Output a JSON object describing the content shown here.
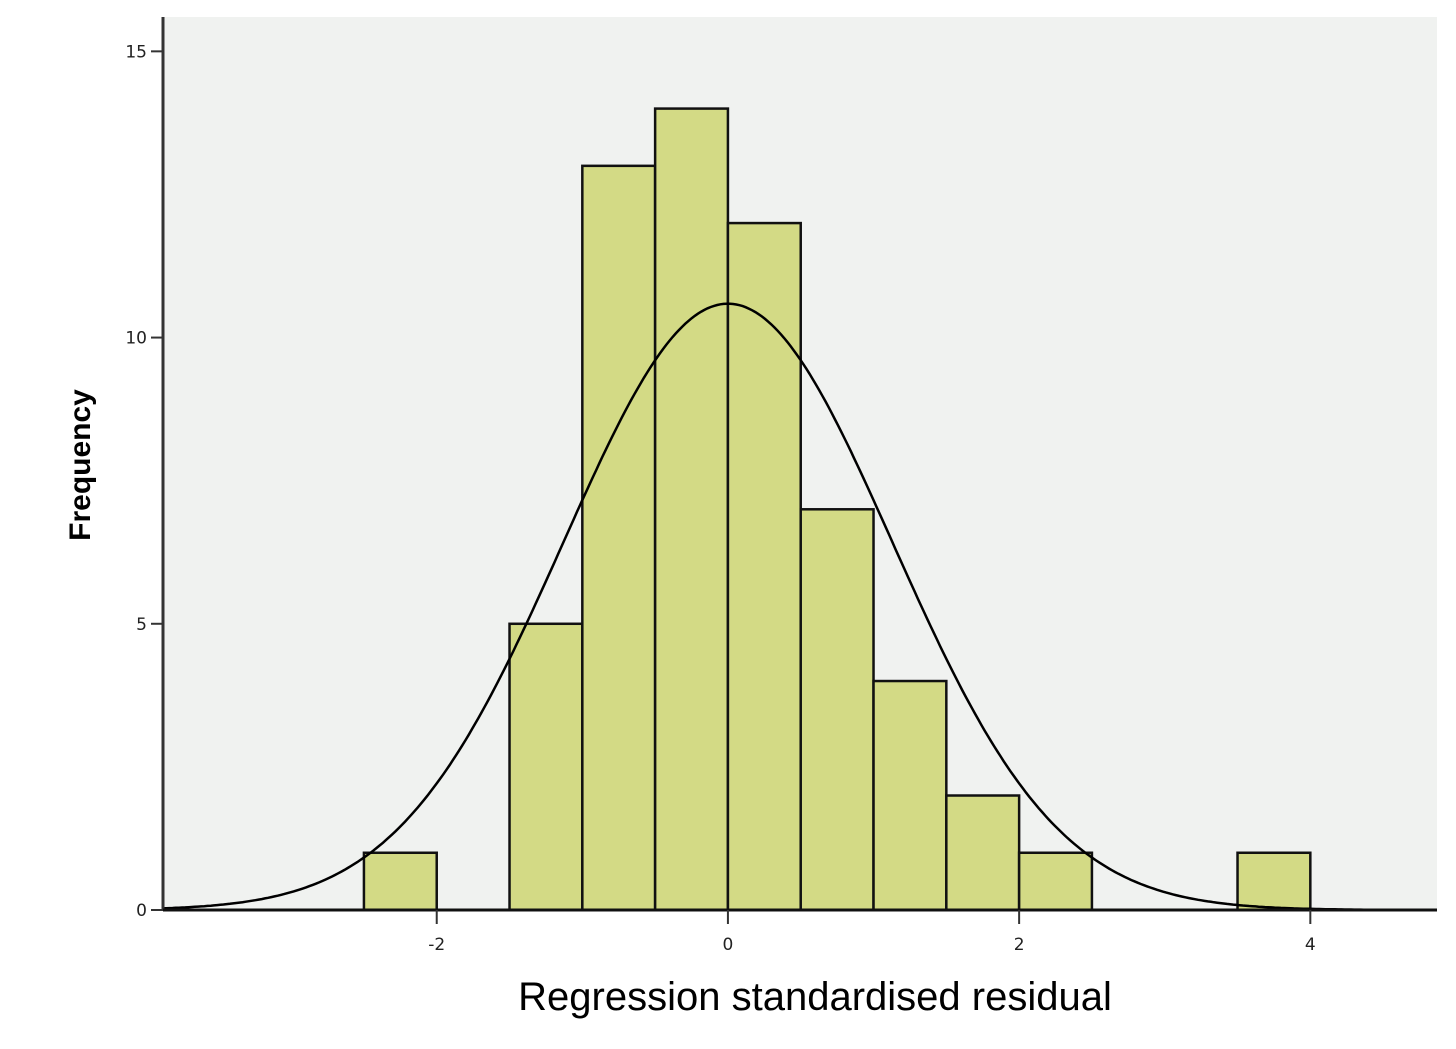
{
  "chart_data": {
    "type": "bar",
    "subtype": "histogram",
    "title": "",
    "xlabel": "Regression standardised residual",
    "ylabel": "Frequency",
    "xlim": [
      -3.88,
      4.87
    ],
    "ylim": [
      0,
      15.6
    ],
    "xticks": [
      -2,
      0,
      2,
      4
    ],
    "xtick_labels": [
      "-2",
      "0",
      "2",
      "4"
    ],
    "yticks": [
      0,
      5,
      10,
      15
    ],
    "ytick_labels": [
      "0",
      "5",
      "10",
      "15"
    ],
    "grid": false,
    "bins": [
      {
        "from": -2.5,
        "to": -2.0,
        "count": 1
      },
      {
        "from": -1.5,
        "to": -1.0,
        "count": 5
      },
      {
        "from": -1.0,
        "to": -0.5,
        "count": 13
      },
      {
        "from": -0.5,
        "to": 0.0,
        "count": 14
      },
      {
        "from": 0.0,
        "to": 0.5,
        "count": 12
      },
      {
        "from": 0.5,
        "to": 1.0,
        "count": 7
      },
      {
        "from": 1.0,
        "to": 1.5,
        "count": 4
      },
      {
        "from": 1.5,
        "to": 2.0,
        "count": 2
      },
      {
        "from": 2.0,
        "to": 2.5,
        "count": 1
      },
      {
        "from": 3.5,
        "to": 4.0,
        "count": 1
      }
    ],
    "normal_curve": {
      "mean": 0,
      "sd": 1.13,
      "n": 60,
      "bin_width": 0.5
    },
    "colors": {
      "bar": "#d3da85",
      "plot_background": "#f0f2f0",
      "line": "#000000"
    }
  }
}
